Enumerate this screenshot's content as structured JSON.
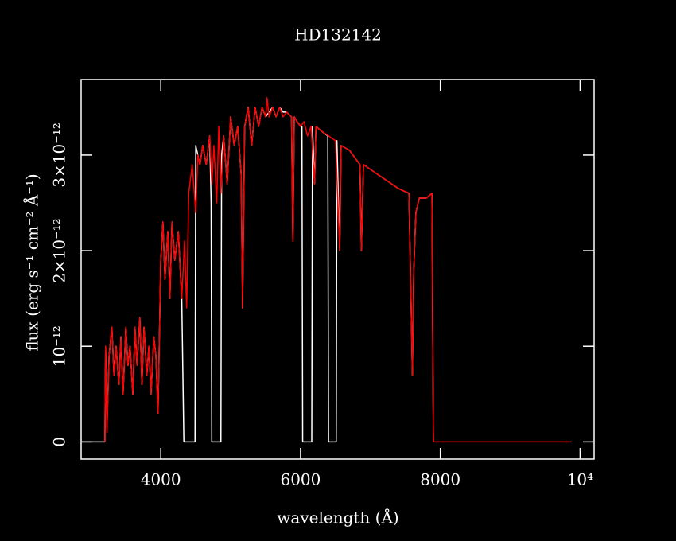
{
  "chart_data": {
    "type": "line",
    "title": "HD132142",
    "xlabel": "wavelength (Å)",
    "ylabel": "flux (erg s⁻¹ cm⁻² Å⁻¹)",
    "xlim": [
      2860,
      10200
    ],
    "ylim": [
      -1.8e-13,
      3.79e-12
    ],
    "xticks": [
      4000,
      6000,
      8000,
      {
        "value": 10000,
        "label": "10⁴"
      }
    ],
    "yticks": [
      0,
      {
        "value": 1e-12,
        "label": "10⁻¹²"
      },
      {
        "value": 2e-12,
        "label": "2×10⁻¹²"
      },
      {
        "value": 3e-12,
        "label": "3×10⁻¹²"
      }
    ],
    "series": [
      {
        "color": "#ffffff",
        "x": [
          2870,
          3200,
          3210,
          3230,
          3260,
          3300,
          3330,
          3360,
          3400,
          3430,
          3460,
          3500,
          3530,
          3560,
          3600,
          3630,
          3660,
          3700,
          3730,
          3760,
          3800,
          3830,
          3860,
          3900,
          3930,
          3960,
          3980,
          4000,
          4030,
          4060,
          4100,
          4130,
          4160,
          4200,
          4250,
          4300,
          4330,
          4490,
          4500,
          4530,
          4560,
          4600,
          4650,
          4700,
          4720,
          4730,
          4860,
          4870,
          4900,
          4950,
          5000,
          5050,
          5100,
          5150,
          5170,
          5200,
          5250,
          5300,
          5350,
          5400,
          5450,
          5500,
          5550,
          5600,
          5650,
          5700,
          5750,
          5800,
          5870,
          5890,
          5910,
          5950,
          6000,
          6020,
          6030,
          6160,
          6170,
          6200,
          6220,
          6300,
          6390,
          6400,
          6510,
          6520,
          6560,
          6580,
          6700,
          6850,
          6870,
          6900,
          7000,
          7200,
          7400,
          7550,
          7580,
          7600,
          7620,
          7650,
          7700,
          7800,
          7880,
          7900
        ],
        "values": [
          0,
          0,
          1e-12,
          1.5e-13,
          9e-13,
          1.2e-12,
          7e-13,
          1e-12,
          6e-13,
          1.1e-12,
          5e-13,
          1.2e-12,
          8e-13,
          1e-12,
          5e-13,
          1.2e-12,
          8e-13,
          1.3e-12,
          6e-13,
          1.2e-12,
          7e-13,
          1e-12,
          5e-13,
          1.1e-12,
          9e-13,
          3e-13,
          1.1e-12,
          1.9e-12,
          2.3e-12,
          1.7e-12,
          2.2e-12,
          1.5e-12,
          2.3e-12,
          1.9e-12,
          2.2e-12,
          1.5e-12,
          0,
          0,
          3.1e-12,
          3e-12,
          2.9e-12,
          3.1e-12,
          2.9e-12,
          3.2e-12,
          2.5e-12,
          0,
          0,
          3e-12,
          3.2e-12,
          2.7e-12,
          3.4e-12,
          3.1e-12,
          3.3e-12,
          2.8e-12,
          1.4e-12,
          3.3e-12,
          3.5e-12,
          3.1e-12,
          3.5e-12,
          3.3e-12,
          3.5e-12,
          3.4e-12,
          3.45e-12,
          3.5e-12,
          3.4e-12,
          3.5e-12,
          3.45e-12,
          3.45e-12,
          3.4e-12,
          2.1e-12,
          3.4e-12,
          3.35e-12,
          3.3e-12,
          3.3e-12,
          0,
          0,
          3.3e-12,
          2.7e-12,
          3.3e-12,
          3.25e-12,
          3.2e-12,
          0,
          0,
          3.15e-12,
          2e-12,
          3.1e-12,
          3.05e-12,
          2.9e-12,
          2e-12,
          2.9e-12,
          2.85e-12,
          2.75e-12,
          2.65e-12,
          2.6e-12,
          1.5e-12,
          7e-13,
          1.8e-12,
          2.4e-12,
          2.55e-12,
          2.55e-12,
          2.6e-12,
          0
        ]
      },
      {
        "color": "#ff0000",
        "x": [
          3200,
          3210,
          3230,
          3260,
          3300,
          3330,
          3360,
          3400,
          3430,
          3460,
          3500,
          3530,
          3560,
          3600,
          3630,
          3660,
          3700,
          3730,
          3760,
          3800,
          3830,
          3860,
          3900,
          3930,
          3960,
          3980,
          4000,
          4030,
          4060,
          4100,
          4130,
          4160,
          4200,
          4250,
          4300,
          4340,
          4370,
          4400,
          4450,
          4500,
          4530,
          4560,
          4600,
          4650,
          4700,
          4730,
          4760,
          4800,
          4830,
          4860,
          4900,
          4950,
          5000,
          5050,
          5100,
          5150,
          5170,
          5200,
          5250,
          5300,
          5350,
          5400,
          5450,
          5500,
          5520,
          5550,
          5600,
          5650,
          5700,
          5750,
          5800,
          5870,
          5890,
          5910,
          5950,
          6000,
          6050,
          6100,
          6150,
          6200,
          6220,
          6300,
          6400,
          6500,
          6560,
          6580,
          6700,
          6850,
          6870,
          6900,
          7000,
          7200,
          7400,
          7550,
          7580,
          7600,
          7620,
          7650,
          7700,
          7800,
          7880,
          7900,
          9880
        ],
        "values": [
          0,
          1e-12,
          1e-13,
          9e-13,
          1.2e-12,
          7e-13,
          1e-12,
          6e-13,
          1.1e-12,
          5e-13,
          1.2e-12,
          8e-13,
          1e-12,
          5e-13,
          1.2e-12,
          8e-13,
          1.3e-12,
          6e-13,
          1.2e-12,
          7e-13,
          1e-12,
          5e-13,
          1.1e-12,
          9e-13,
          3e-13,
          1.1e-12,
          1.9e-12,
          2.3e-12,
          1.7e-12,
          2.2e-12,
          1.5e-12,
          2.3e-12,
          1.9e-12,
          2.2e-12,
          1.5e-12,
          2.1e-12,
          1.4e-12,
          2.6e-12,
          2.9e-12,
          2.4e-12,
          3e-12,
          2.9e-12,
          3.1e-12,
          2.9e-12,
          3.2e-12,
          2.7e-12,
          3.1e-12,
          2.5e-12,
          3.3e-12,
          2.6e-12,
          3.2e-12,
          2.7e-12,
          3.4e-12,
          3.1e-12,
          3.3e-12,
          2.8e-12,
          1.4e-12,
          3.3e-12,
          3.5e-12,
          3.1e-12,
          3.5e-12,
          3.3e-12,
          3.5e-12,
          3.4e-12,
          3.6e-12,
          3.4e-12,
          3.5e-12,
          3.4e-12,
          3.5e-12,
          3.4e-12,
          3.45e-12,
          3.4e-12,
          2.1e-12,
          3.4e-12,
          3.35e-12,
          3.3e-12,
          3.35e-12,
          3.2e-12,
          3.3e-12,
          2.7e-12,
          3.3e-12,
          3.25e-12,
          3.2e-12,
          3.15e-12,
          2e-12,
          3.1e-12,
          3.05e-12,
          2.9e-12,
          2e-12,
          2.9e-12,
          2.85e-12,
          2.75e-12,
          2.65e-12,
          2.6e-12,
          1.5e-12,
          7e-13,
          1.8e-12,
          2.4e-12,
          2.55e-12,
          2.55e-12,
          2.6e-12,
          0,
          0
        ]
      }
    ]
  }
}
